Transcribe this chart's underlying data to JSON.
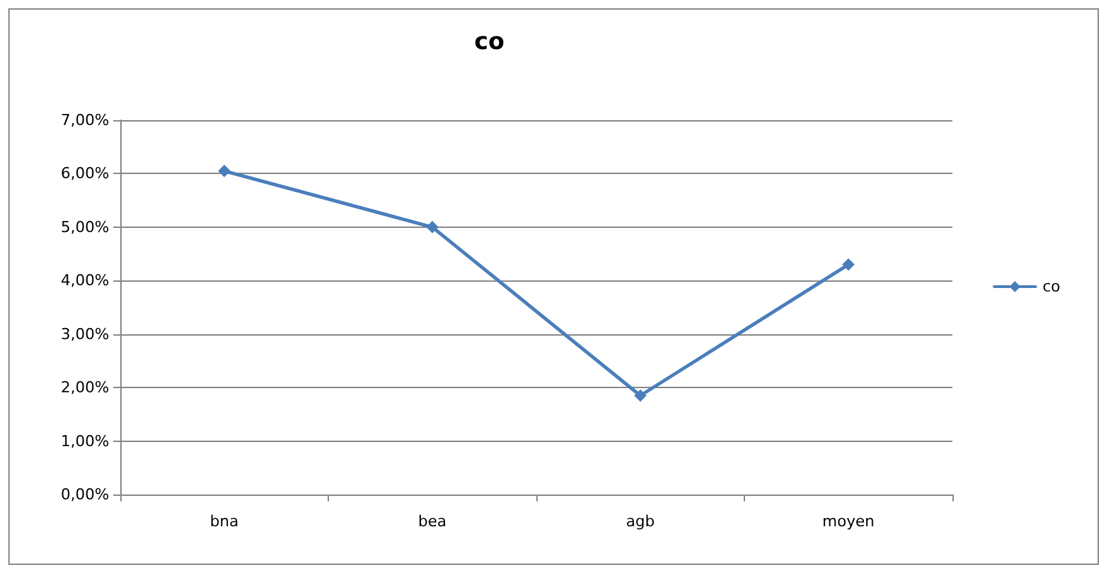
{
  "chart_data": {
    "type": "line",
    "title": "co",
    "categories": [
      "bna",
      "bea",
      "agb",
      "moyen"
    ],
    "series": [
      {
        "name": "co",
        "color": "#4a7ebb",
        "values": [
          6.05,
          5.0,
          1.85,
          4.3
        ]
      }
    ],
    "ylim": [
      0,
      7
    ],
    "yticks": [
      {
        "value": 0,
        "label": "0,00%"
      },
      {
        "value": 1,
        "label": "1,00%"
      },
      {
        "value": 2,
        "label": "2,00%"
      },
      {
        "value": 3,
        "label": "3,00%"
      },
      {
        "value": 4,
        "label": "4,00%"
      },
      {
        "value": 5,
        "label": "5,00%"
      },
      {
        "value": 6,
        "label": "6,00%"
      },
      {
        "value": 7,
        "label": "7,00%"
      }
    ],
    "grid": "y",
    "legend": "right",
    "marker": "diamond",
    "line_style": "solid"
  }
}
